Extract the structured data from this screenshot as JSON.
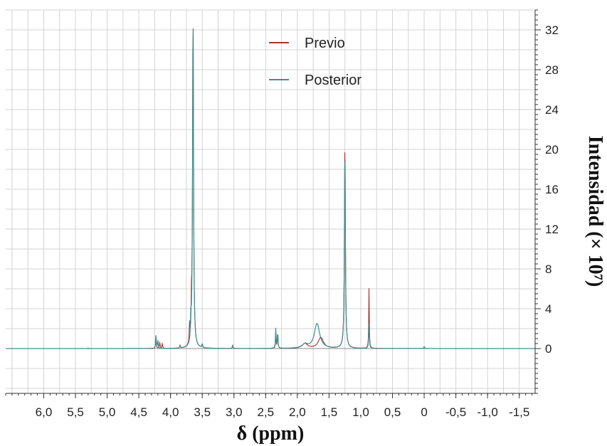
{
  "chart_data": {
    "type": "line",
    "xlabel": "δ (ppm)",
    "ylabel": "Intensidad (× 10⁷)",
    "xlim": [
      6.6,
      -1.75
    ],
    "ylim": [
      -4.5,
      34
    ],
    "x_axis_reversed": true,
    "x_ticks": [
      6.0,
      5.5,
      5.0,
      4.5,
      4.0,
      3.5,
      3.0,
      2.5,
      2.0,
      1.5,
      1.0,
      0.5,
      0.0,
      -0.5,
      -1.0,
      -1.5
    ],
    "x_tick_labels": [
      "6,0",
      "5,5",
      "5,0",
      "4,5",
      "4,0",
      "3,5",
      "3,0",
      "2,5",
      "2,0",
      "1,5",
      "1,0",
      "0,5",
      "0",
      "-0,5",
      "-1,0",
      "-1,5"
    ],
    "y_ticks": [
      0,
      4,
      8,
      12,
      16,
      20,
      24,
      28,
      32
    ],
    "y_tick_labels": [
      "0",
      "4",
      "8",
      "12",
      "16",
      "20",
      "24",
      "28",
      "32"
    ],
    "grid": true,
    "legend_position": "top-center",
    "series": [
      {
        "name": "Previo",
        "color": "#a8322e",
        "peaks": [
          {
            "x": 5.3,
            "y": 0.05
          },
          {
            "x": 4.23,
            "y": 1.1
          },
          {
            "x": 4.17,
            "y": 0.6
          },
          {
            "x": 4.13,
            "y": 0.5
          },
          {
            "x": 3.85,
            "y": 0.3
          },
          {
            "x": 3.7,
            "y": 1.8
          },
          {
            "x": 3.67,
            "y": 3.2
          },
          {
            "x": 3.645,
            "y": 34
          },
          {
            "x": 3.5,
            "y": 0.3
          },
          {
            "x": 3.02,
            "y": 0.3
          },
          {
            "x": 2.34,
            "y": 1.3
          },
          {
            "x": 2.31,
            "y": 1.6
          },
          {
            "x": 1.88,
            "y": 0.5
          },
          {
            "x": 1.63,
            "y": 1.1
          },
          {
            "x": 1.25,
            "y": 20.8
          },
          {
            "x": 0.87,
            "y": 6.1
          },
          {
            "x": 0.0,
            "y": 0.2
          }
        ]
      },
      {
        "name": "Posterior",
        "color": "#3f8f8f",
        "peaks": [
          {
            "x": 5.3,
            "y": 0.05
          },
          {
            "x": 4.23,
            "y": 1.4
          },
          {
            "x": 4.2,
            "y": 0.8
          },
          {
            "x": 3.85,
            "y": 0.2
          },
          {
            "x": 3.68,
            "y": 2.3
          },
          {
            "x": 3.645,
            "y": 34
          },
          {
            "x": 3.5,
            "y": 0.4
          },
          {
            "x": 3.02,
            "y": 0.35
          },
          {
            "x": 2.34,
            "y": 2.0
          },
          {
            "x": 2.31,
            "y": 1.5
          },
          {
            "x": 1.88,
            "y": 0.4
          },
          {
            "x": 1.69,
            "y": 2.5
          },
          {
            "x": 1.25,
            "y": 19.8
          },
          {
            "x": 0.87,
            "y": 2.5
          },
          {
            "x": 0.0,
            "y": 0.2
          }
        ]
      }
    ]
  }
}
